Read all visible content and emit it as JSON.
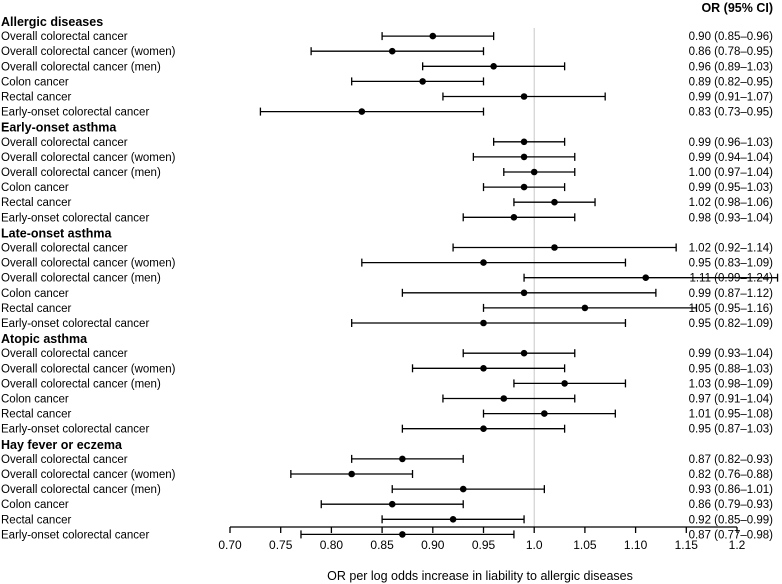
{
  "chart_data": {
    "type": "forest",
    "column_header": "OR (95% CI)",
    "xlabel": "OR per log odds increase in liability to allergic diseases",
    "reference_line": 1.0,
    "xlim": [
      0.7,
      1.2
    ],
    "xticks": [
      "0.70",
      "0.75",
      "0.80",
      "0.85",
      "0.90",
      "0.95",
      "1.0",
      "1.05",
      "1.10",
      "1.15",
      "1.2"
    ],
    "groups": [
      {
        "title": "Allergic diseases",
        "rows": [
          {
            "label": "Overall colorectal cancer",
            "or": 0.9,
            "lo": 0.85,
            "hi": 0.96,
            "text": "0.90  (0.85–0.96)"
          },
          {
            "label": "Overall colorectal cancer (women)",
            "or": 0.86,
            "lo": 0.78,
            "hi": 0.95,
            "text": "0.86  (0.78–0.95)"
          },
          {
            "label": "Overall colorectal cancer (men)",
            "or": 0.96,
            "lo": 0.89,
            "hi": 1.03,
            "text": "0.96  (0.89–1.03)"
          },
          {
            "label": "Colon cancer",
            "or": 0.89,
            "lo": 0.82,
            "hi": 0.95,
            "text": "0.89  (0.82–0.95)"
          },
          {
            "label": "Rectal cancer",
            "or": 0.99,
            "lo": 0.91,
            "hi": 1.07,
            "text": "0.99  (0.91–1.07)"
          },
          {
            "label": "Early-onset colorectal cancer",
            "or": 0.83,
            "lo": 0.73,
            "hi": 0.95,
            "text": "0.83  (0.73–0.95)"
          }
        ]
      },
      {
        "title": "Early-onset asthma",
        "rows": [
          {
            "label": "Overall colorectal cancer",
            "or": 0.99,
            "lo": 0.96,
            "hi": 1.03,
            "text": "0.99  (0.96–1.03)"
          },
          {
            "label": "Overall colorectal cancer (women)",
            "or": 0.99,
            "lo": 0.94,
            "hi": 1.04,
            "text": "0.99  (0.94–1.04)"
          },
          {
            "label": "Overall colorectal cancer (men)",
            "or": 1.0,
            "lo": 0.97,
            "hi": 1.04,
            "text": "1.00  (0.97–1.04)"
          },
          {
            "label": "Colon cancer",
            "or": 0.99,
            "lo": 0.95,
            "hi": 1.03,
            "text": "0.99  (0.95–1.03)"
          },
          {
            "label": "Rectal cancer",
            "or": 1.02,
            "lo": 0.98,
            "hi": 1.06,
            "text": "1.02  (0.98–1.06)"
          },
          {
            "label": "Early-onset colorectal cancer",
            "or": 0.98,
            "lo": 0.93,
            "hi": 1.04,
            "text": "0.98  (0.93–1.04)"
          }
        ]
      },
      {
        "title": "Late-onset asthma",
        "rows": [
          {
            "label": "Overall colorectal cancer",
            "or": 1.02,
            "lo": 0.92,
            "hi": 1.14,
            "text": "1.02  (0.92–1.14)"
          },
          {
            "label": "Overall colorectal cancer (women)",
            "or": 0.95,
            "lo": 0.83,
            "hi": 1.09,
            "text": "0.95  (0.83–1.09)"
          },
          {
            "label": "Overall colorectal cancer (men)",
            "or": 1.11,
            "lo": 0.99,
            "hi": 1.24,
            "text": "1.11  (0.99–1.24)"
          },
          {
            "label": "Colon cancer",
            "or": 0.99,
            "lo": 0.87,
            "hi": 1.12,
            "text": "0.99  (0.87–1.12)"
          },
          {
            "label": "Rectal cancer",
            "or": 1.05,
            "lo": 0.95,
            "hi": 1.16,
            "text": "1.05  (0.95–1.16)"
          },
          {
            "label": "Early-onset colorectal cancer",
            "or": 0.95,
            "lo": 0.82,
            "hi": 1.09,
            "text": "0.95  (0.82–1.09)"
          }
        ]
      },
      {
        "title": "Atopic asthma",
        "rows": [
          {
            "label": "Overall colorectal cancer",
            "or": 0.99,
            "lo": 0.93,
            "hi": 1.04,
            "text": "0.99  (0.93–1.04)"
          },
          {
            "label": "Overall colorectal cancer (women)",
            "or": 0.95,
            "lo": 0.88,
            "hi": 1.03,
            "text": "0.95  (0.88–1.03)"
          },
          {
            "label": "Overall colorectal cancer (men)",
            "or": 1.03,
            "lo": 0.98,
            "hi": 1.09,
            "text": "1.03  (0.98–1.09)"
          },
          {
            "label": "Colon cancer",
            "or": 0.97,
            "lo": 0.91,
            "hi": 1.04,
            "text": "0.97  (0.91–1.04)"
          },
          {
            "label": "Rectal cancer",
            "or": 1.01,
            "lo": 0.95,
            "hi": 1.08,
            "text": "1.01  (0.95–1.08)"
          },
          {
            "label": "Early-onset colorectal cancer",
            "or": 0.95,
            "lo": 0.87,
            "hi": 1.03,
            "text": "0.95  (0.87–1.03)"
          }
        ]
      },
      {
        "title": "Hay fever or eczema",
        "rows": [
          {
            "label": "Overall colorectal cancer",
            "or": 0.87,
            "lo": 0.82,
            "hi": 0.93,
            "text": "0.87  (0.82–0.93)"
          },
          {
            "label": "Overall colorectal cancer (women)",
            "or": 0.82,
            "lo": 0.76,
            "hi": 0.88,
            "text": "0.82  (0.76–0.88)"
          },
          {
            "label": "Overall colorectal cancer (men)",
            "or": 0.93,
            "lo": 0.86,
            "hi": 1.01,
            "text": "0.93  (0.86–1.01)"
          },
          {
            "label": "Colon cancer",
            "or": 0.86,
            "lo": 0.79,
            "hi": 0.93,
            "text": "0.86  (0.79–0.93)"
          },
          {
            "label": "Rectal cancer",
            "or": 0.92,
            "lo": 0.85,
            "hi": 0.99,
            "text": "0.92  (0.85–0.99)"
          },
          {
            "label": "Early-onset colorectal cancer",
            "or": 0.87,
            "lo": 0.77,
            "hi": 0.98,
            "text": "0.87  (0.77–0.98)"
          }
        ]
      }
    ],
    "colors": {
      "marks": "#000000",
      "reference": "#c8c8c8",
      "text": "#000000"
    }
  }
}
